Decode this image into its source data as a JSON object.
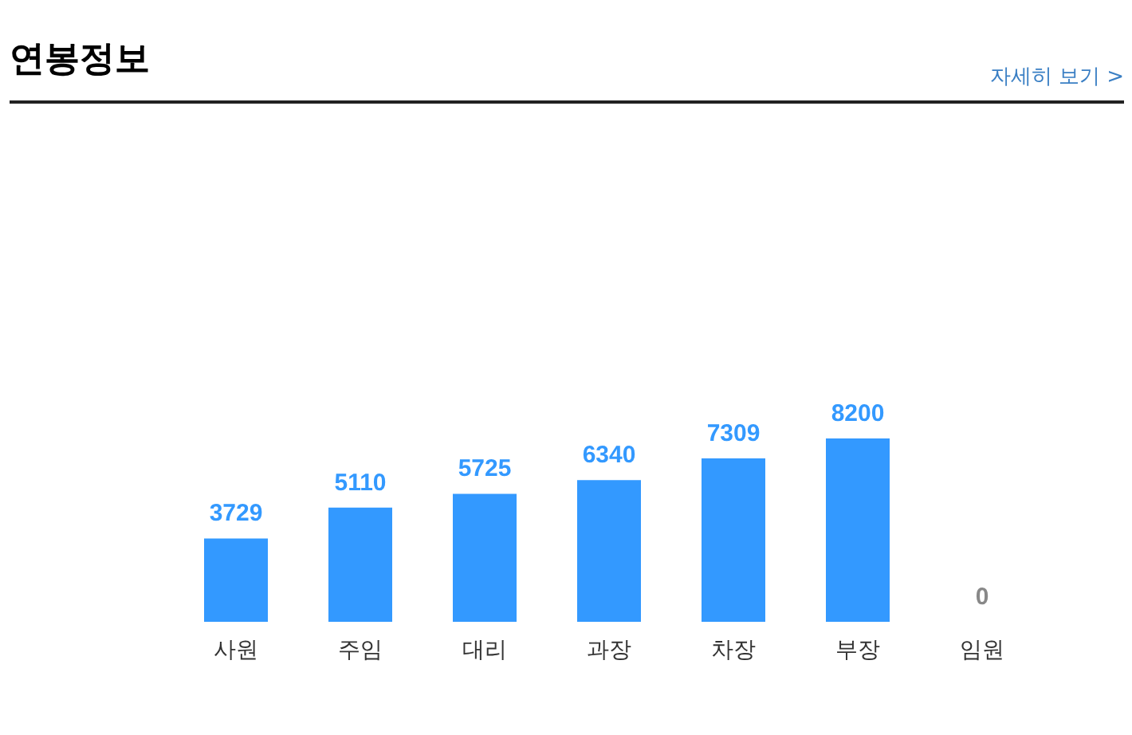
{
  "chart_data": {
    "type": "bar",
    "title": "연봉정보",
    "annotations": [
      "자세히 보기 >"
    ],
    "categories": [
      "사원",
      "주임",
      "대리",
      "과장",
      "차장",
      "부장",
      "임원"
    ],
    "values": [
      3729,
      5110,
      5725,
      6340,
      7309,
      8200,
      0
    ],
    "color": "#3399ff",
    "data_labels": true
  }
}
